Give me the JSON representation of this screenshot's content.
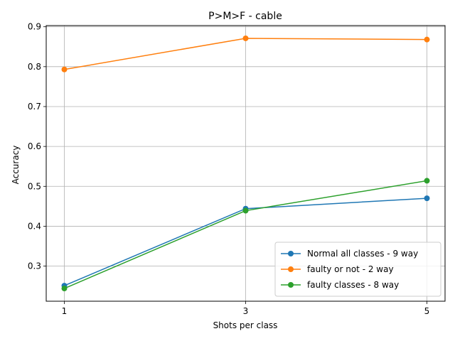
{
  "chart_data": {
    "type": "line",
    "title": "P>M>F - cable",
    "xlabel": "Shots per class",
    "ylabel": "Accuracy",
    "x": [
      1,
      3,
      5
    ],
    "x_ticks": [
      "1",
      "3",
      "5"
    ],
    "y_ticks": [
      "0.3",
      "0.4",
      "0.5",
      "0.6",
      "0.7",
      "0.8",
      "0.9"
    ],
    "xlim": [
      0.8,
      5.2
    ],
    "ylim": [
      0.212,
      0.903
    ],
    "grid": true,
    "legend_position": "lower-right",
    "series": [
      {
        "name": "Normal all classes - 9 way",
        "values": [
          0.251,
          0.444,
          0.47
        ],
        "color": "#1f77b4"
      },
      {
        "name": "faulty or not - 2 way",
        "values": [
          0.793,
          0.871,
          0.868
        ],
        "color": "#ff7f0e"
      },
      {
        "name": "faulty classes - 8 way",
        "values": [
          0.244,
          0.439,
          0.514
        ],
        "color": "#2ca02c"
      }
    ]
  }
}
